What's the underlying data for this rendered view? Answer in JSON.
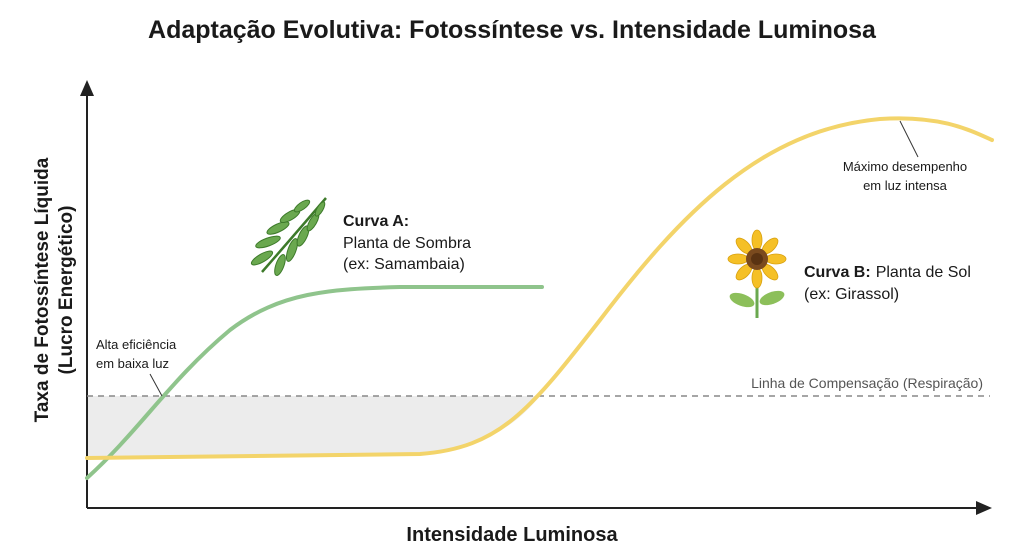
{
  "title": "Adaptação Evolutiva: Fotossíntese vs. Intensidade Luminosa",
  "axes": {
    "y_label": [
      "Taxa de Fotossíntese Líquida",
      "(Lucro Energético)"
    ],
    "x_label": "Intensidade Luminosa"
  },
  "curves": [
    {
      "name": "Curva A:",
      "lines": [
        "Planta de Sombra",
        "(ex: Samambaia)"
      ]
    },
    {
      "name": "Curva B:",
      "lines": [
        "Planta de Sol",
        "(ex: Girassol)"
      ]
    }
  ],
  "annotations": {
    "low_light": [
      "Alta eficiência",
      "em baixa luz"
    ],
    "peak": [
      "Máximo desempenho",
      "em luz intensa"
    ],
    "compensation": "Linha de Compensação (Respiração)"
  }
}
